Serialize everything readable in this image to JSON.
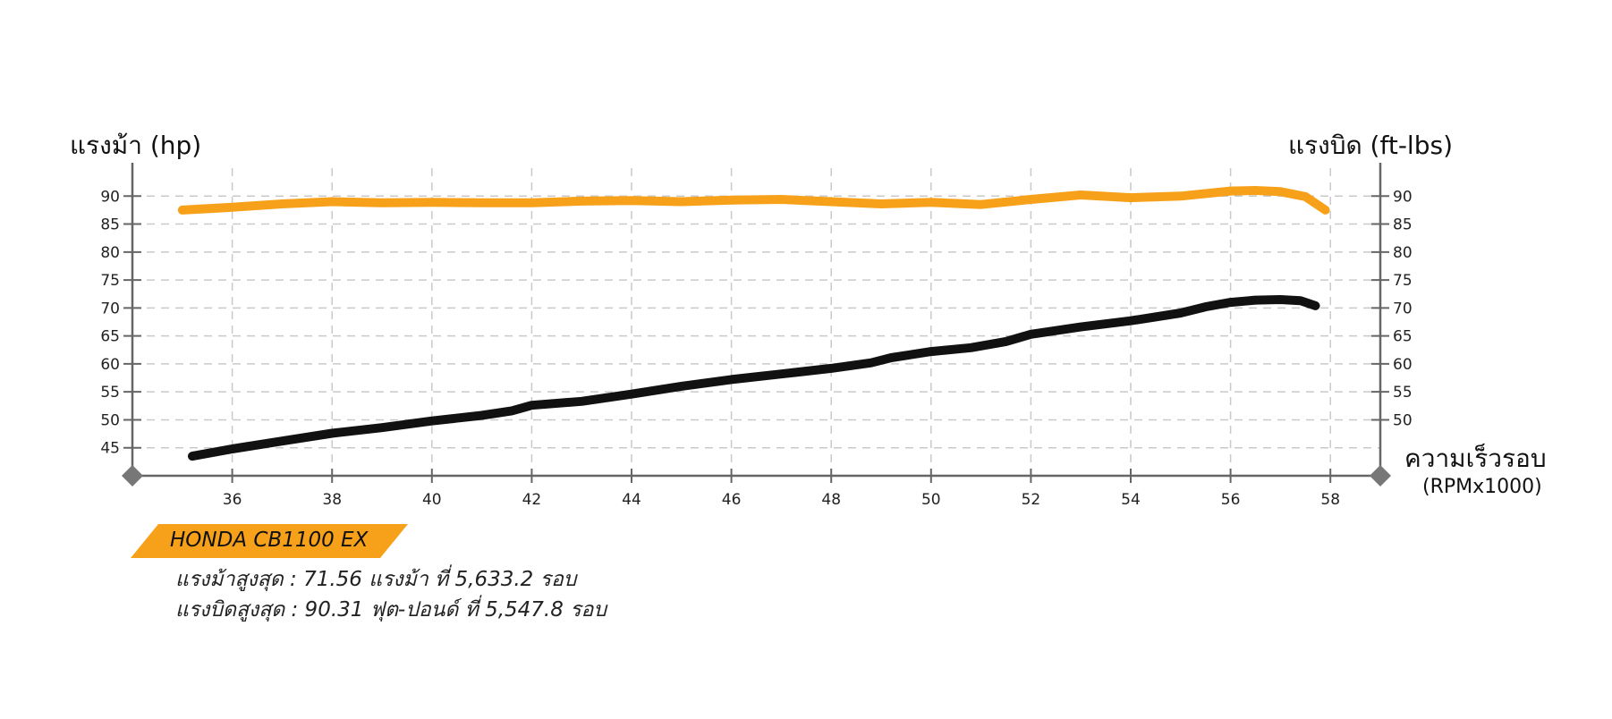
{
  "chart_data": {
    "type": "line",
    "x_tick_labels": [
      "36",
      "38",
      "40",
      "42",
      "44",
      "46",
      "48",
      "50",
      "52",
      "54",
      "56",
      "58"
    ],
    "xlim": [
      34,
      59
    ],
    "y_tick_labels_left": [
      "90",
      "85",
      "80",
      "75",
      "70",
      "65",
      "60",
      "55",
      "50",
      "45"
    ],
    "y_tick_labels_right": [
      "90",
      "85",
      "80",
      "75",
      "70",
      "65",
      "60",
      "55",
      "50"
    ],
    "ylim": [
      40,
      95
    ],
    "ylabel_left": "แรงม้า (hp)",
    "ylabel_right": "แรงบิด (ft-lbs)",
    "xlabel": "ความเร็วรอบ",
    "xlabel_unit": "(RPMx1000)",
    "grid": true,
    "series": [
      {
        "color": "#f7a11a",
        "x": [
          35,
          36,
          37,
          38,
          39,
          40,
          41,
          42,
          43,
          44,
          45,
          46,
          47,
          48,
          49,
          50,
          51,
          52,
          53,
          54,
          55,
          56,
          56.5,
          57,
          57.5,
          57.9
        ],
        "y": [
          87.5,
          88.0,
          88.6,
          89.0,
          88.8,
          88.9,
          88.8,
          88.8,
          89.1,
          89.2,
          89.0,
          89.3,
          89.4,
          89.0,
          88.6,
          88.9,
          88.5,
          89.4,
          90.2,
          89.7,
          90.0,
          90.9,
          91.0,
          90.8,
          89.9,
          87.5
        ]
      },
      {
        "color": "#111111",
        "x": [
          35.2,
          36,
          37,
          38,
          39,
          40,
          41,
          41.6,
          42,
          43,
          44,
          45,
          46,
          47,
          48,
          48.8,
          49.2,
          50,
          50.8,
          51.5,
          52,
          53,
          54,
          55,
          55.5,
          56,
          56.5,
          57,
          57.4,
          57.7
        ],
        "y": [
          43.5,
          44.8,
          46.2,
          47.6,
          48.6,
          49.8,
          50.8,
          51.6,
          52.6,
          53.3,
          54.6,
          56.0,
          57.2,
          58.2,
          59.2,
          60.2,
          61.1,
          62.2,
          62.9,
          64.0,
          65.3,
          66.6,
          67.7,
          69.1,
          70.2,
          71.0,
          71.4,
          71.5,
          71.3,
          70.4
        ]
      }
    ]
  },
  "legend": {
    "model": "HONDA CB1100 EX",
    "max_hp_text": "แรงม้าสูงสุด : 71.56 แรงม้า ที่ 5,633.2 รอบ",
    "max_torque_text": "แรงบิดสูงสุด : 90.31 ฟุต-ปอนด์ ที่ 5,547.8 รอบ"
  }
}
